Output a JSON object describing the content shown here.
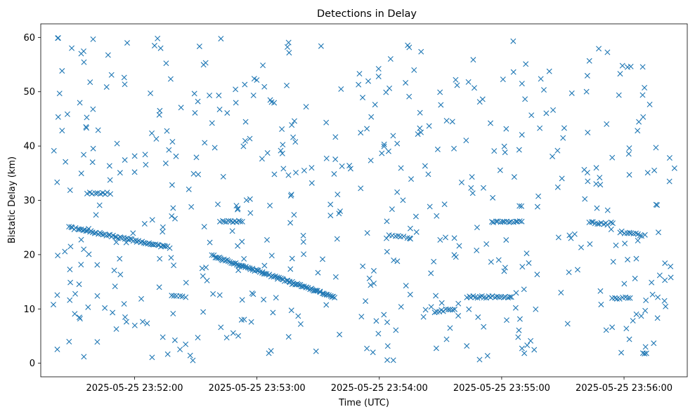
{
  "chart_data": {
    "type": "scatter",
    "title": "Detections in Delay",
    "xlabel": "Time (UTC)",
    "ylabel": "Bistatic Delay (km)",
    "x_type": "datetime",
    "x_start": "2025-05-25 23:51:20",
    "x_end": "2025-05-25 23:56:25",
    "xlim": [
      "2025-05-25 23:51:14",
      "2025-05-25 23:56:31"
    ],
    "ylim": [
      -2.5,
      62.5
    ],
    "x_ticks": [
      "2025-05-25 23:52:00",
      "2025-05-25 23:53:00",
      "2025-05-25 23:54:00",
      "2025-05-25 23:55:00",
      "2025-05-25 23:56:00"
    ],
    "y_ticks": [
      0,
      10,
      20,
      30,
      40,
      50,
      60
    ],
    "marker": "x",
    "series_color": "#1f77b4",
    "grid": false,
    "legend": "none",
    "trails": [
      {
        "t0": "2025-05-25 23:51:28",
        "t1": "2025-05-25 23:52:17",
        "y0": 25.0,
        "y1": 21.3,
        "n": 60
      },
      {
        "t0": "2025-05-25 23:52:38",
        "t1": "2025-05-25 23:53:38",
        "y0": 19.8,
        "y1": 12.2,
        "n": 90
      },
      {
        "t0": "2025-05-25 23:52:42",
        "t1": "2025-05-25 23:52:53",
        "y0": 26.1,
        "y1": 26.1,
        "n": 12
      },
      {
        "t0": "2025-05-25 23:51:37",
        "t1": "2025-05-25 23:51:48",
        "y0": 31.3,
        "y1": 31.3,
        "n": 10
      },
      {
        "t0": "2025-05-25 23:54:43",
        "t1": "2025-05-25 23:55:05",
        "y0": 12.2,
        "y1": 12.2,
        "n": 22
      },
      {
        "t0": "2025-05-25 23:54:55",
        "t1": "2025-05-25 23:55:10",
        "y0": 26.1,
        "y1": 26.1,
        "n": 15
      },
      {
        "t0": "2025-05-25 23:55:43",
        "t1": "2025-05-25 23:55:52",
        "y0": 26.0,
        "y1": 25.6,
        "n": 10
      },
      {
        "t0": "2025-05-25 23:55:58",
        "t1": "2025-05-25 23:56:10",
        "y0": 24.2,
        "y1": 23.5,
        "n": 12
      },
      {
        "t0": "2025-05-25 23:55:54",
        "t1": "2025-05-25 23:56:03",
        "y0": 12.0,
        "y1": 12.0,
        "n": 8
      },
      {
        "t0": "2025-05-25 23:54:27",
        "t1": "2025-05-25 23:54:37",
        "y0": 9.5,
        "y1": 10.0,
        "n": 10
      },
      {
        "t0": "2025-05-25 23:54:05",
        "t1": "2025-05-25 23:54:15",
        "y0": 23.7,
        "y1": 23.0,
        "n": 8
      },
      {
        "t0": "2025-05-25 23:52:18",
        "t1": "2025-05-25 23:52:25",
        "y0": 12.3,
        "y1": 12.3,
        "n": 6
      },
      {
        "t0": "2025-05-25 23:56:09",
        "t1": "2025-05-25 23:56:11",
        "y0": 2.0,
        "y1": 1.7,
        "n": 3
      }
    ],
    "noise": {
      "count": 520,
      "y_range": [
        0.5,
        60
      ],
      "seed": 7
    }
  }
}
